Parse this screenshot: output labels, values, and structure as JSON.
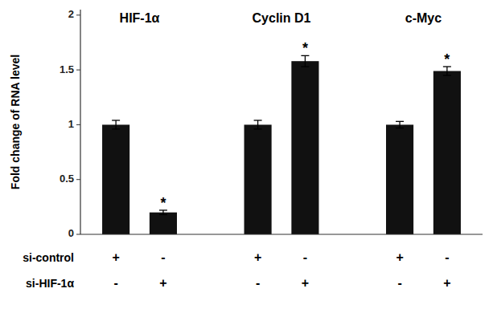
{
  "chart_data": {
    "type": "bar",
    "ylabel": "Fold change of RNA level",
    "categories": [
      null,
      null,
      null,
      null,
      null,
      null
    ],
    "values": [
      1.0,
      0.2,
      1.0,
      1.58,
      1.0,
      1.49
    ],
    "errors": [
      0.04,
      0.02,
      0.04,
      0.05,
      0.03,
      0.04
    ],
    "significance_marks": [
      null,
      "*",
      null,
      "*",
      null,
      "*"
    ],
    "group_labels": [
      "HIF-1α",
      "Cyclin D1",
      "c-Myc"
    ],
    "rows": [
      {
        "label": "si-control",
        "signs": [
          "+",
          "-",
          "+",
          "-",
          "+",
          "-"
        ]
      },
      {
        "label": "si-HIF-1α",
        "signs": [
          "-",
          "+",
          "-",
          "+",
          "-",
          "+"
        ]
      }
    ],
    "color": "#111111",
    "ylim": [
      0,
      2.05
    ],
    "yticks": [
      0,
      0.5,
      1,
      1.5,
      2
    ],
    "grid": false
  }
}
